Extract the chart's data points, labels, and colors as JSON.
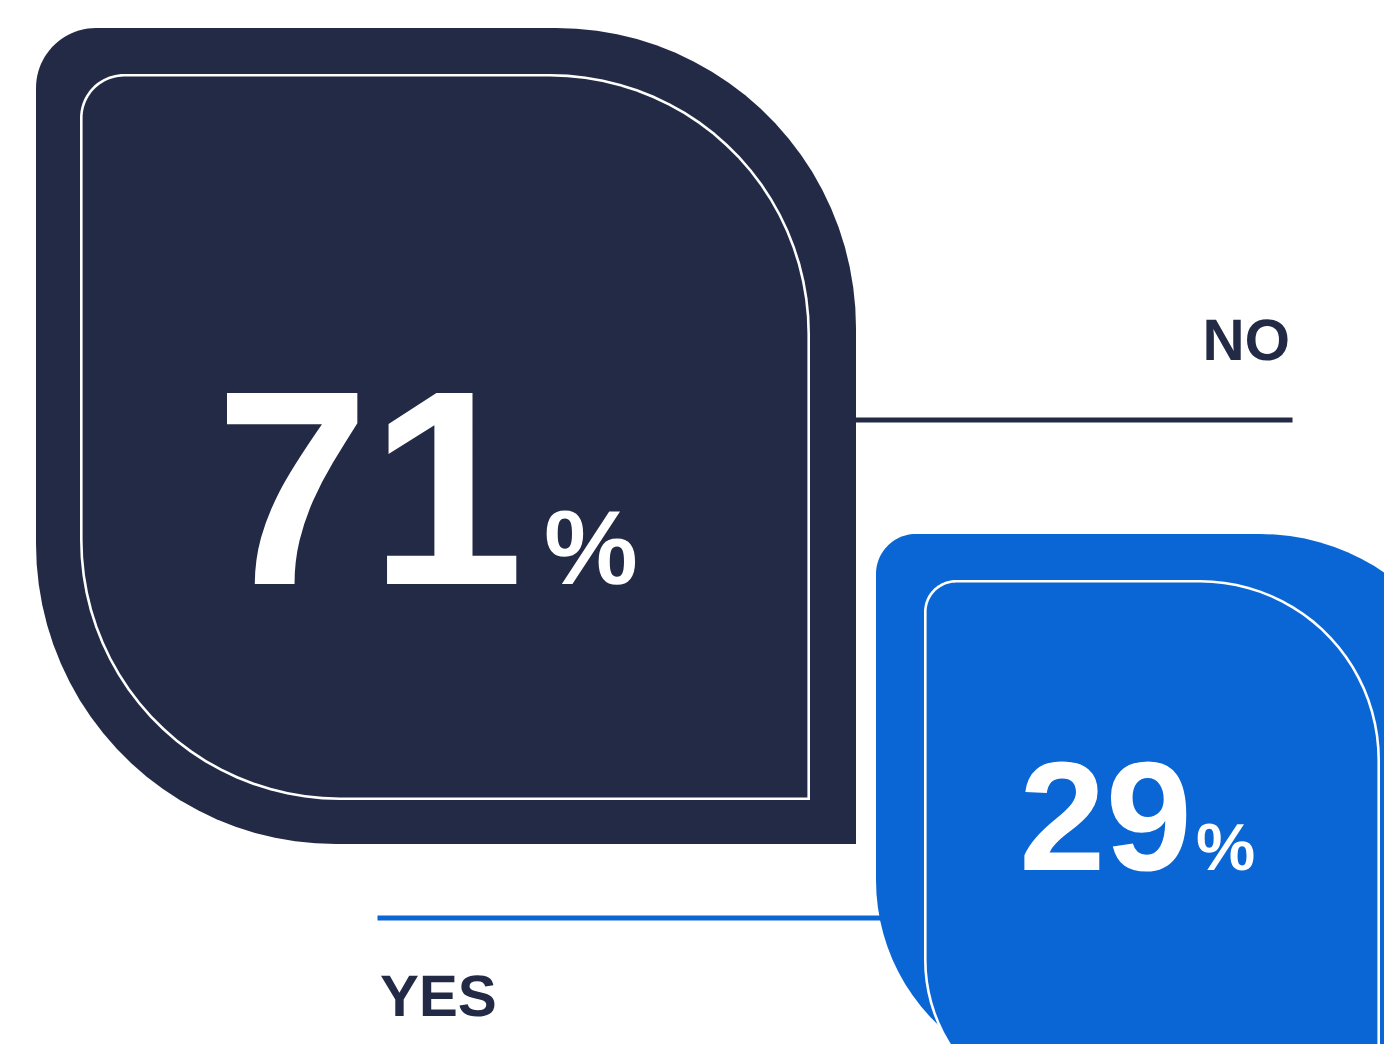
{
  "chart_data": {
    "type": "other",
    "categories": [
      "NO",
      "YES"
    ],
    "values": [
      71,
      29
    ],
    "value_labels": [
      "71%",
      "29%"
    ],
    "colors": [
      "#232a45",
      "#0a66d4"
    ]
  }
}
